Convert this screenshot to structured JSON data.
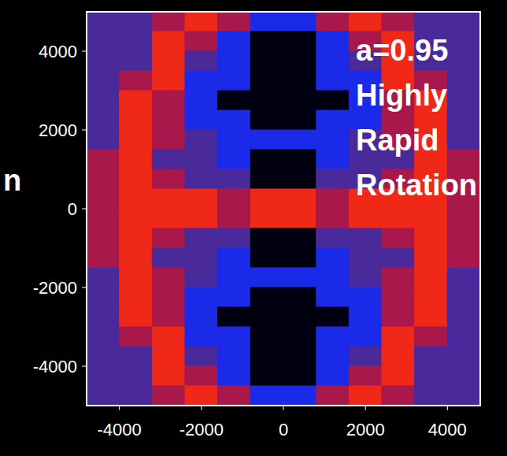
{
  "chart_data": {
    "type": "heatmap",
    "x": [
      -4400,
      -3600,
      -2800,
      -2000,
      -1200,
      -400,
      400,
      1200,
      2000,
      2800,
      3600,
      4400
    ],
    "y": [
      4750,
      4250,
      3750,
      3250,
      2750,
      2250,
      1750,
      1250,
      750,
      250,
      -250,
      -750,
      -1250,
      -1750,
      -2250,
      -2750,
      -3250,
      -3750,
      -4250,
      -4750
    ],
    "z": [
      [
        2,
        2,
        3,
        4,
        3,
        1,
        1,
        3,
        4,
        3,
        2,
        2
      ],
      [
        2,
        2,
        4,
        3,
        1,
        0,
        0,
        1,
        3,
        4,
        2,
        2
      ],
      [
        2,
        2,
        4,
        2,
        1,
        0,
        0,
        1,
        2,
        4,
        2,
        2
      ],
      [
        2,
        3,
        4,
        1,
        1,
        0,
        0,
        1,
        1,
        4,
        3,
        2
      ],
      [
        2,
        4,
        3,
        1,
        0,
        0,
        0,
        0,
        1,
        3,
        4,
        2
      ],
      [
        2,
        4,
        3,
        1,
        1,
        0,
        0,
        1,
        1,
        3,
        4,
        2
      ],
      [
        2,
        4,
        3,
        2,
        1,
        1,
        1,
        1,
        2,
        3,
        4,
        2
      ],
      [
        3,
        4,
        2,
        2,
        1,
        0,
        0,
        1,
        2,
        2,
        4,
        3
      ],
      [
        3,
        4,
        3,
        2,
        2,
        0,
        0,
        2,
        2,
        3,
        4,
        3
      ],
      [
        3,
        4,
        4,
        4,
        3,
        4,
        4,
        3,
        4,
        4,
        4,
        3
      ],
      [
        3,
        4,
        4,
        4,
        3,
        4,
        4,
        3,
        4,
        4,
        4,
        3
      ],
      [
        3,
        4,
        3,
        2,
        2,
        0,
        0,
        2,
        2,
        3,
        4,
        3
      ],
      [
        3,
        4,
        2,
        2,
        1,
        0,
        0,
        1,
        2,
        2,
        4,
        3
      ],
      [
        2,
        4,
        3,
        2,
        1,
        1,
        1,
        1,
        2,
        3,
        4,
        2
      ],
      [
        2,
        4,
        3,
        1,
        1,
        0,
        0,
        1,
        1,
        3,
        4,
        2
      ],
      [
        2,
        4,
        3,
        1,
        0,
        0,
        0,
        0,
        1,
        3,
        4,
        2
      ],
      [
        2,
        3,
        4,
        1,
        1,
        0,
        0,
        1,
        1,
        4,
        3,
        2
      ],
      [
        2,
        2,
        4,
        2,
        1,
        0,
        0,
        1,
        2,
        4,
        2,
        2
      ],
      [
        2,
        2,
        4,
        3,
        1,
        0,
        0,
        1,
        3,
        4,
        2,
        2
      ],
      [
        2,
        2,
        3,
        4,
        3,
        1,
        1,
        3,
        4,
        3,
        2,
        2
      ]
    ],
    "colors": [
      "#000010",
      "#1a2ae8",
      "#4a2a9a",
      "#a8184a",
      "#f02818"
    ],
    "xlim": [
      -4800,
      4800
    ],
    "ylim": [
      -5000,
      5000
    ],
    "xticks": [
      -4000,
      -2000,
      0,
      2000,
      4000
    ],
    "yticks": [
      -4000,
      -2000,
      0,
      2000,
      4000
    ],
    "annotation": [
      "a=0.95",
      "Highly",
      "Rapid",
      "Rotation"
    ],
    "side_label": "n"
  }
}
